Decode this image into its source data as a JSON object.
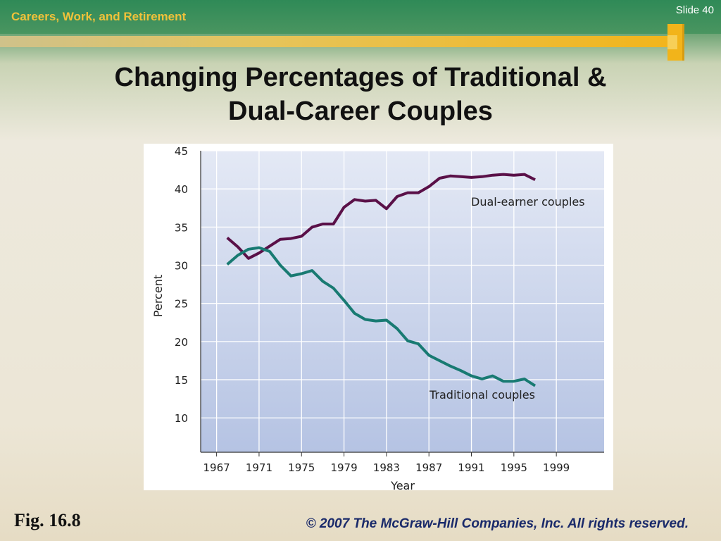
{
  "header": {
    "section_title": "Careers, Work, and Retirement",
    "slide_number": "Slide 40"
  },
  "slide_title_line1": "Changing Percentages of Traditional &",
  "slide_title_line2": "Dual-Career Couples",
  "footer": {
    "figure_label": "Fig. 16.8",
    "copyright": "© 2007 The McGraw-Hill Companies, Inc. All rights reserved."
  },
  "colors": {
    "dual": "#5a1048",
    "traditional": "#187a72",
    "plot_bg_top": "#e4e9f5",
    "plot_bg_bottom": "#b5c3e3"
  },
  "chart_data": {
    "type": "line",
    "xlabel": "Year",
    "ylabel": "Percent",
    "xlim": [
      1965.5,
      2003.5
    ],
    "ylim": [
      5.5,
      45
    ],
    "x_ticks": [
      1967,
      1971,
      1975,
      1979,
      1983,
      1987,
      1991,
      1995,
      1999
    ],
    "y_ticks": [
      10,
      15,
      20,
      25,
      30,
      35,
      40,
      45
    ],
    "grid": true,
    "series": [
      {
        "name": "Dual-earner couples",
        "color_key": "dual",
        "x": [
          1968,
          1969,
          1970,
          1971,
          1972,
          1973,
          1974,
          1975,
          1976,
          1977,
          1978,
          1979,
          1980,
          1981,
          1982,
          1983,
          1984,
          1985,
          1986,
          1987,
          1988,
          1989,
          1990,
          1991,
          1992,
          1993,
          1994,
          1995,
          1996,
          1997
        ],
        "y": [
          33.6,
          32.4,
          30.9,
          31.6,
          32.5,
          33.4,
          33.5,
          33.8,
          35.0,
          35.4,
          35.4,
          37.6,
          38.6,
          38.4,
          38.5,
          37.4,
          39.0,
          39.5,
          39.5,
          40.3,
          41.4,
          41.7,
          41.6,
          41.5,
          41.6,
          41.8,
          41.9,
          41.8,
          41.9,
          41.2
        ]
      },
      {
        "name": "Traditional couples",
        "color_key": "traditional",
        "x": [
          1968,
          1969,
          1970,
          1971,
          1972,
          1973,
          1974,
          1975,
          1976,
          1977,
          1978,
          1979,
          1980,
          1981,
          1982,
          1983,
          1984,
          1985,
          1986,
          1987,
          1988,
          1989,
          1990,
          1991,
          1992,
          1993,
          1994,
          1995,
          1996,
          1997
        ],
        "y": [
          30.1,
          31.3,
          32.1,
          32.3,
          31.8,
          30.0,
          28.6,
          28.9,
          29.3,
          27.9,
          27.0,
          25.4,
          23.7,
          22.9,
          22.7,
          22.8,
          21.7,
          20.1,
          19.7,
          18.2,
          17.5,
          16.8,
          16.2,
          15.5,
          15.1,
          15.5,
          14.8,
          14.8,
          15.1,
          14.2
        ]
      }
    ],
    "annotations": [
      "Dual-earner couples",
      "Traditional couples"
    ]
  }
}
